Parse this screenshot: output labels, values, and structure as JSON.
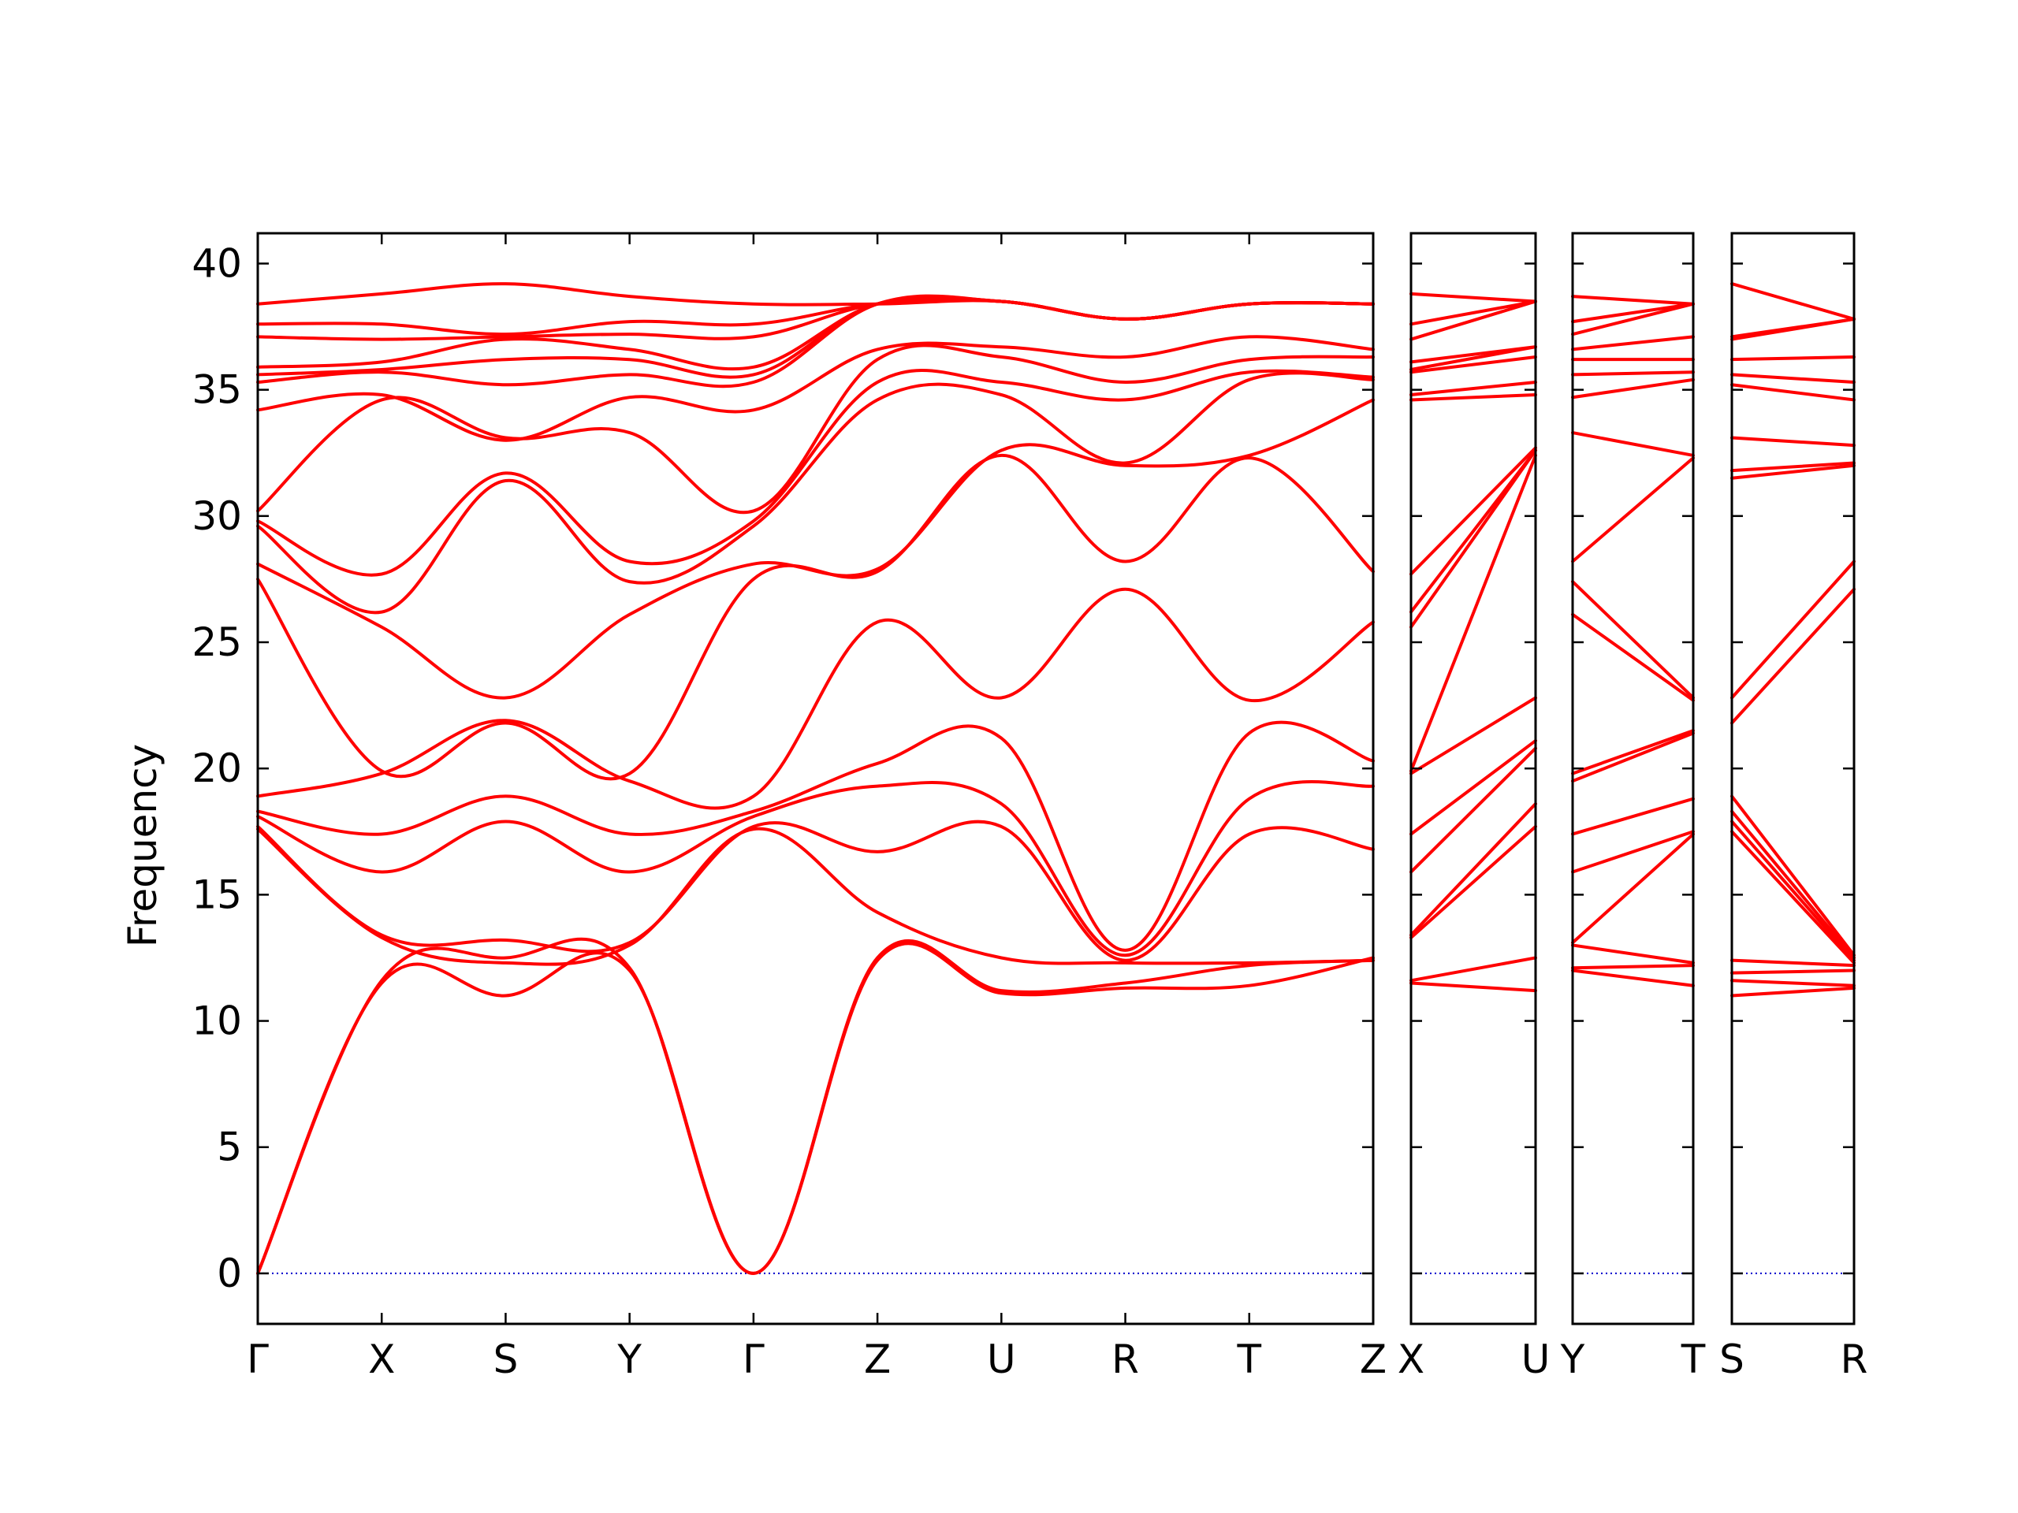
{
  "chart_data": {
    "type": "line",
    "title": "",
    "ylabel": "Frequency",
    "ylim": [
      -2,
      41.2
    ],
    "yticks": [
      0,
      5,
      10,
      15,
      20,
      25,
      30,
      35,
      40
    ],
    "band_color": "#ff0000",
    "zero_line_color": "#0000cc",
    "panels": [
      {
        "labels": [
          "Γ",
          "X",
          "S",
          "Y",
          "Γ",
          "Z",
          "U",
          "R",
          "T",
          "Z"
        ],
        "bands": [
          [
            0,
            11.5,
            11.0,
            12.0,
            0,
            12.4,
            11.1,
            11.3,
            11.4,
            12.5
          ],
          [
            0,
            11.6,
            12.5,
            12.1,
            0,
            12.5,
            11.2,
            11.5,
            12.2,
            12.4
          ],
          [
            17.6,
            13.3,
            12.3,
            13.0,
            17.6,
            14.3,
            12.5,
            12.3,
            12.3,
            12.4
          ],
          [
            17.7,
            13.4,
            13.2,
            13.1,
            17.7,
            16.7,
            17.7,
            12.4,
            17.4,
            16.8
          ],
          [
            18.1,
            15.9,
            17.9,
            15.9,
            18.1,
            19.3,
            18.6,
            12.6,
            18.8,
            19.3
          ],
          [
            18.3,
            17.4,
            18.9,
            17.4,
            18.3,
            20.2,
            21.2,
            12.8,
            21.4,
            20.3
          ],
          [
            18.9,
            19.8,
            21.9,
            19.5,
            18.9,
            25.8,
            22.8,
            27.1,
            22.7,
            25.8
          ],
          [
            27.5,
            19.9,
            21.8,
            19.8,
            27.5,
            27.8,
            32.4,
            28.2,
            32.3,
            27.8
          ],
          [
            28.1,
            25.6,
            22.8,
            26.1,
            28.1,
            27.9,
            32.6,
            32.0,
            32.4,
            34.6
          ],
          [
            29.6,
            26.2,
            31.4,
            27.4,
            29.6,
            34.6,
            34.8,
            32.1,
            35.4,
            35.4
          ],
          [
            29.8,
            27.7,
            31.7,
            28.2,
            29.8,
            35.3,
            35.3,
            34.6,
            35.7,
            35.5
          ],
          [
            30.2,
            34.6,
            33.1,
            33.3,
            30.2,
            36.2,
            36.3,
            35.3,
            36.2,
            36.3
          ],
          [
            34.2,
            34.8,
            33.0,
            34.7,
            34.2,
            36.6,
            36.7,
            36.3,
            37.1,
            36.6
          ],
          [
            35.3,
            35.7,
            35.2,
            35.6,
            35.3,
            38.4,
            38.5,
            37.8,
            38.4,
            38.4
          ],
          [
            35.6,
            35.8,
            36.2,
            36.2,
            35.6,
            38.4,
            38.5,
            37.8,
            38.4,
            38.4
          ],
          [
            35.9,
            36.1,
            37.0,
            36.6,
            35.9,
            38.4,
            38.5,
            37.8,
            38.4,
            38.4
          ],
          [
            37.1,
            37.0,
            37.1,
            37.2,
            37.1,
            38.4,
            38.5,
            37.8,
            38.4,
            38.4
          ],
          [
            37.6,
            37.6,
            37.2,
            37.7,
            37.6,
            38.4,
            38.5,
            37.8,
            38.4,
            38.4
          ],
          [
            38.4,
            38.8,
            39.2,
            38.7,
            38.4,
            38.4,
            38.5,
            37.8,
            38.4,
            38.4
          ]
        ]
      },
      {
        "labels": [
          "X",
          "U"
        ],
        "bands": [
          [
            11.5,
            11.2
          ],
          [
            11.6,
            12.5
          ],
          [
            13.3,
            17.7
          ],
          [
            13.4,
            18.6
          ],
          [
            15.9,
            20.8
          ],
          [
            17.4,
            21.1
          ],
          [
            19.8,
            22.8
          ],
          [
            19.9,
            32.4
          ],
          [
            25.6,
            32.6
          ],
          [
            26.2,
            32.6
          ],
          [
            27.7,
            32.7
          ],
          [
            34.6,
            34.8
          ],
          [
            34.8,
            35.3
          ],
          [
            35.7,
            36.3
          ],
          [
            35.8,
            36.7
          ],
          [
            36.1,
            36.7
          ],
          [
            37.0,
            38.5
          ],
          [
            37.6,
            38.5
          ],
          [
            38.8,
            38.5
          ]
        ]
      },
      {
        "labels": [
          "Y",
          "T"
        ],
        "bands": [
          [
            12.0,
            11.4
          ],
          [
            12.1,
            12.2
          ],
          [
            13.0,
            12.3
          ],
          [
            13.1,
            17.4
          ],
          [
            15.9,
            17.5
          ],
          [
            17.4,
            18.8
          ],
          [
            19.5,
            21.4
          ],
          [
            19.8,
            21.5
          ],
          [
            26.1,
            22.7
          ],
          [
            27.4,
            22.8
          ],
          [
            28.2,
            32.3
          ],
          [
            33.3,
            32.4
          ],
          [
            34.7,
            35.4
          ],
          [
            35.6,
            35.7
          ],
          [
            36.2,
            36.2
          ],
          [
            36.6,
            37.1
          ],
          [
            37.2,
            38.4
          ],
          [
            37.7,
            38.4
          ],
          [
            38.7,
            38.4
          ]
        ]
      },
      {
        "labels": [
          "S",
          "R"
        ],
        "bands": [
          [
            11.0,
            11.3
          ],
          [
            11.6,
            11.4
          ],
          [
            11.9,
            12.0
          ],
          [
            12.4,
            12.2
          ],
          [
            17.5,
            12.3
          ],
          [
            17.9,
            12.4
          ],
          [
            18.3,
            12.5
          ],
          [
            18.9,
            12.6
          ],
          [
            21.8,
            27.1
          ],
          [
            22.8,
            28.2
          ],
          [
            31.5,
            32.0
          ],
          [
            31.8,
            32.1
          ],
          [
            33.1,
            32.8
          ],
          [
            35.2,
            34.6
          ],
          [
            35.6,
            35.3
          ],
          [
            36.2,
            36.3
          ],
          [
            37.0,
            37.8
          ],
          [
            37.1,
            37.8
          ],
          [
            39.2,
            37.8
          ]
        ]
      }
    ]
  }
}
